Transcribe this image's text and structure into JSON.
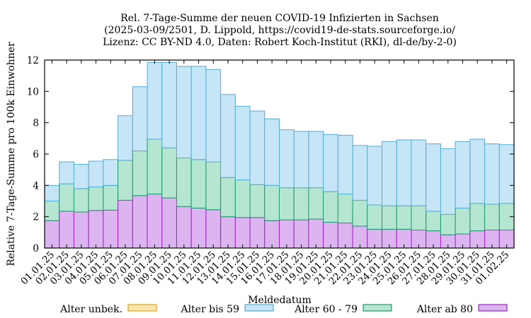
{
  "chart_data": {
    "type": "bar",
    "stacked": true,
    "title_lines": [
      "Rel. 7-Tage-Summe der neuen COVID-19 Infizierten in Sachsen",
      "(2025-03-09/2501, D. Lippold, https://covid19-de-stats.sourceforge.io/",
      "Lizenz: CC BY-ND 4.0, Daten: Robert Koch-Institut (RKI), dl-de/by-2-0)"
    ],
    "xlabel": "Meldedatum",
    "ylabel": "Relative 7-Tage-Summe pro 100k Einwohner",
    "ylim": [
      0,
      12
    ],
    "yticks": [
      0,
      2,
      4,
      6,
      8,
      10,
      12
    ],
    "grid": false,
    "legend_position": "bottom",
    "categories": [
      "01.01.25",
      "02.01.25",
      "03.01.25",
      "04.01.25",
      "05.01.25",
      "06.01.25",
      "07.01.25",
      "08.01.25",
      "09.01.25",
      "10.01.25",
      "11.01.25",
      "12.01.25",
      "13.01.25",
      "14.01.25",
      "15.01.25",
      "16.01.25",
      "17.01.25",
      "18.01.25",
      "19.01.25",
      "20.01.25",
      "21.01.25",
      "22.01.25",
      "23.01.25",
      "24.01.25",
      "25.01.25",
      "26.01.25",
      "27.01.25",
      "28.01.25",
      "29.01.25",
      "30.01.25",
      "31.01.25",
      "01.02.25"
    ],
    "series": [
      {
        "name": "Alter ab 80",
        "fill": "#dcb4f0",
        "stroke": "#a020c8",
        "values": [
          1.75,
          2.35,
          2.3,
          2.4,
          2.42,
          3.05,
          3.35,
          3.45,
          3.2,
          2.65,
          2.55,
          2.45,
          2.0,
          1.95,
          1.95,
          1.75,
          1.8,
          1.8,
          1.85,
          1.65,
          1.6,
          1.4,
          1.2,
          1.2,
          1.2,
          1.15,
          1.1,
          0.85,
          0.9,
          1.1,
          1.15,
          1.15
        ]
      },
      {
        "name": "Alter 60 - 79",
        "fill": "#b4e6d2",
        "stroke": "#1e9a6e",
        "values": [
          1.25,
          1.75,
          1.5,
          1.5,
          1.58,
          2.55,
          2.85,
          3.5,
          3.2,
          3.1,
          3.1,
          3.05,
          2.5,
          2.4,
          2.1,
          2.25,
          2.05,
          2.05,
          2.0,
          1.95,
          1.85,
          1.65,
          1.55,
          1.5,
          1.5,
          1.55,
          1.25,
          1.3,
          1.65,
          1.75,
          1.65,
          1.7
        ]
      },
      {
        "name": "Alter bis 59",
        "fill": "#c6e6f8",
        "stroke": "#55acd6",
        "values": [
          1.0,
          1.4,
          1.55,
          1.65,
          1.65,
          2.85,
          4.1,
          4.9,
          5.45,
          5.85,
          5.95,
          5.9,
          5.3,
          4.7,
          4.7,
          4.25,
          3.7,
          3.6,
          3.6,
          3.65,
          3.75,
          3.5,
          3.75,
          4.1,
          4.2,
          4.2,
          4.3,
          4.2,
          4.25,
          4.1,
          3.85,
          3.75
        ]
      },
      {
        "name": "Alter unbek.",
        "fill": "#fde7a8",
        "stroke": "#e0a41c",
        "values": [
          0,
          0,
          0,
          0,
          0,
          0,
          0,
          0,
          0,
          0,
          0,
          0,
          0,
          0,
          0,
          0,
          0,
          0,
          0,
          0,
          0,
          0,
          0,
          0,
          0,
          0,
          0,
          0,
          0,
          0,
          0,
          0
        ]
      }
    ],
    "legend_order": [
      "Alter unbek.",
      "Alter bis 59",
      "Alter 60 - 79",
      "Alter ab 80"
    ]
  }
}
